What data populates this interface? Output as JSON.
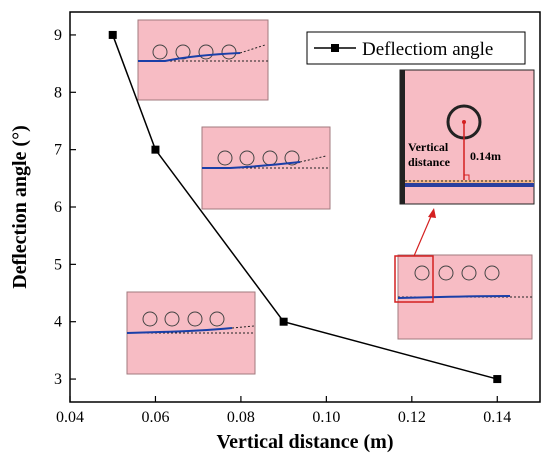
{
  "chart_data": {
    "type": "line",
    "xlabel": "Vertical distance (m)",
    "ylabel": "Deflection angle (°)",
    "xlim": [
      0.04,
      0.15
    ],
    "ylim": [
      2.6,
      9.4
    ],
    "xticks": [
      "0.04",
      "0.06",
      "0.08",
      "0.10",
      "0.12",
      "0.14"
    ],
    "yticks": [
      "3",
      "4",
      "5",
      "6",
      "7",
      "8",
      "9"
    ],
    "grid": false,
    "legend_position": "top-right",
    "series": [
      {
        "name": "Deflectiom angle",
        "marker": "square",
        "color": "#000000",
        "x": [
          0.05,
          0.06,
          0.09,
          0.14
        ],
        "y": [
          9.0,
          7.0,
          4.0,
          3.0
        ]
      }
    ],
    "inset_annotations": {
      "vertical_label_line1": "Vertical",
      "vertical_label_line2": "distance",
      "distance_value": "0.14m"
    }
  },
  "colors": {
    "inset_fill": "#f7bcc4",
    "inset_border": "#a07a7e",
    "flap_line": "#1a3fa8",
    "highlight_box": "#d42020"
  }
}
